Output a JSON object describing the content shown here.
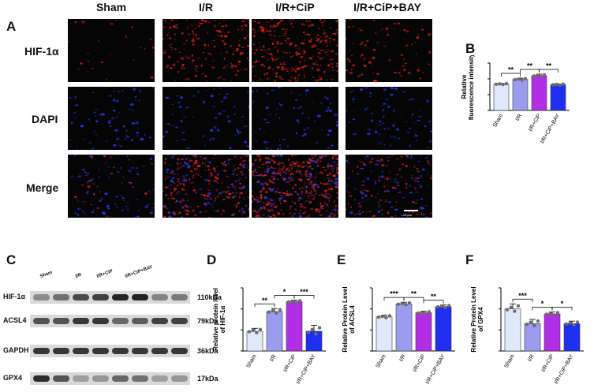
{
  "panel_letters": {
    "A": "A",
    "B": "B",
    "C": "C",
    "D": "D",
    "E": "E",
    "F": "F"
  },
  "microscopy": {
    "columns": [
      "Sham",
      "I/R",
      "I/R+CiP",
      "I/R+CiP+BAY"
    ],
    "rows": [
      "HIF-1α",
      "DAPI",
      "Merge"
    ],
    "scale_bar": "20 μm",
    "colors": {
      "hif": "#e0201a",
      "dapi": "#2b39e6",
      "background": "#050505"
    }
  },
  "western": {
    "lane_labels": [
      "Sham",
      "I/R",
      "I/R+CiP",
      "I/R+CiP+BAY"
    ],
    "rows": [
      {
        "protein": "HIF-1α",
        "kda": "110kDa"
      },
      {
        "protein": "ACSL4",
        "kda": "79kDa"
      },
      {
        "protein": "GAPDH",
        "kda": "36kDa"
      },
      {
        "protein": "GPX4",
        "kda": "17kDa"
      }
    ]
  },
  "chart_data": [
    {
      "id": "B",
      "type": "bar",
      "categories": [
        "Sham",
        "I/R",
        "I/R+CiP",
        "I/R+CiP+BAY"
      ],
      "values": [
        1.0,
        1.18,
        1.32,
        0.98
      ],
      "errors": [
        0.03,
        0.05,
        0.06,
        0.03
      ],
      "ylabel": "Relative\nfluorescence intensity",
      "significance": [
        {
          "from": 0,
          "to": 1,
          "label": "**"
        },
        {
          "from": 1,
          "to": 2,
          "label": "**"
        },
        {
          "from": 2,
          "to": 3,
          "label": "**"
        }
      ],
      "colors": [
        "#dfe9fb",
        "#9b9cf0",
        "#b12ee6",
        "#1f2ff0"
      ]
    },
    {
      "id": "D",
      "type": "bar",
      "categories": [
        "Sham",
        "I/R",
        "I/R+CiP",
        "I/R+CiP+BAY"
      ],
      "values": [
        1.0,
        2.0,
        2.5,
        1.0
      ],
      "errors": [
        0.15,
        0.15,
        0.08,
        0.3
      ],
      "ylabel": "Relative protein level\nof HIF-1α",
      "significance": [
        {
          "from": 0,
          "to": 1,
          "label": "**"
        },
        {
          "from": 1,
          "to": 2,
          "label": "*"
        },
        {
          "from": 2,
          "to": 3,
          "label": "***"
        }
      ],
      "colors": [
        "#dfe9fb",
        "#9b9cf0",
        "#b12ee6",
        "#1f2ff0"
      ]
    },
    {
      "id": "E",
      "type": "bar",
      "categories": [
        "Sham",
        "I/R",
        "I/R+CiP",
        "I/R+CiP+BAY"
      ],
      "values": [
        1.0,
        1.38,
        1.12,
        1.3
      ],
      "errors": [
        0.05,
        0.05,
        0.05,
        0.05
      ],
      "ylabel": "Relative Protein Level\nof ACSL4",
      "significance": [
        {
          "from": 0,
          "to": 1,
          "label": "***"
        },
        {
          "from": 1,
          "to": 2,
          "label": "**"
        },
        {
          "from": 2,
          "to": 3,
          "label": "**"
        }
      ],
      "colors": [
        "#dfe9fb",
        "#9b9cf0",
        "#b12ee6",
        "#1f2ff0"
      ]
    },
    {
      "id": "F",
      "type": "bar",
      "categories": [
        "Sham",
        "I/R",
        "I/R+CiP",
        "I/R+CiP+BAY"
      ],
      "values": [
        1.0,
        0.65,
        0.88,
        0.65
      ],
      "errors": [
        0.12,
        0.1,
        0.05,
        0.06
      ],
      "ylabel": "Relative Protein Level\nof GPX4",
      "significance": [
        {
          "from": 0,
          "to": 1,
          "label": "***"
        },
        {
          "from": 1,
          "to": 2,
          "label": "*"
        },
        {
          "from": 2,
          "to": 3,
          "label": "*"
        }
      ],
      "colors": [
        "#dfe9fb",
        "#9b9cf0",
        "#b12ee6",
        "#1f2ff0"
      ]
    }
  ]
}
